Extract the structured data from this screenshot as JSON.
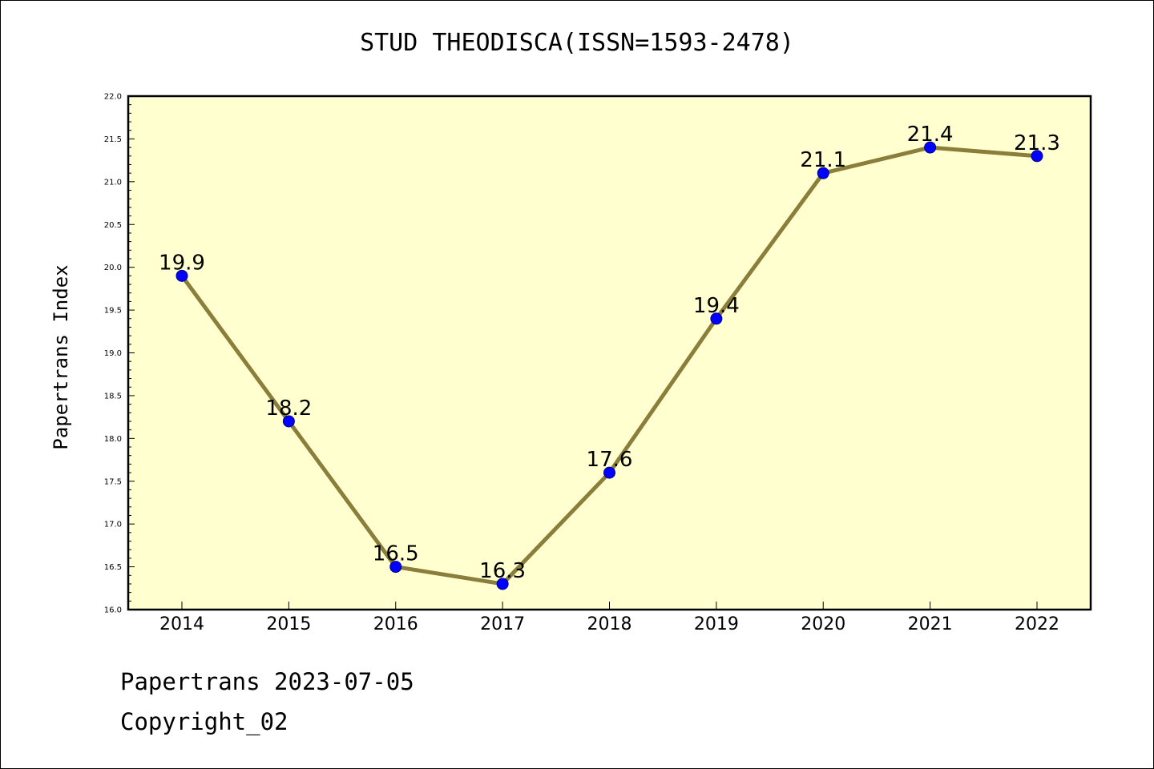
{
  "page": {
    "footer_line1": "Papertrans 2023-07-05",
    "footer_line2": "Copyright_02"
  },
  "chart_data": {
    "type": "line",
    "title": "STUD THEODISCA(ISSN=1593-2478)",
    "xlabel": "",
    "ylabel": "Papertrans Index",
    "categories": [
      "2014",
      "2015",
      "2016",
      "2017",
      "2018",
      "2019",
      "2020",
      "2021",
      "2022"
    ],
    "series": [
      {
        "values": [
          19.9,
          18.2,
          16.5,
          16.3,
          17.6,
          19.4,
          21.1,
          21.4,
          21.3
        ],
        "data_labels": [
          "19.9",
          "18.2",
          "16.5",
          "16.3",
          "17.6",
          "19.4",
          "21.1",
          "21.4",
          "21.3"
        ]
      }
    ],
    "ylim": [
      16.0,
      22.0
    ],
    "yticks": [
      "16.0",
      "16.5",
      "17.0",
      "17.5",
      "18.0",
      "18.5",
      "19.0",
      "19.5",
      "20.0",
      "20.5",
      "21.0",
      "21.5",
      "22.0"
    ],
    "grid": false,
    "legend": "none",
    "colors": {
      "plot_background": "#ffffd0",
      "line": "#8b7d3a",
      "marker": "#0000ff"
    }
  }
}
